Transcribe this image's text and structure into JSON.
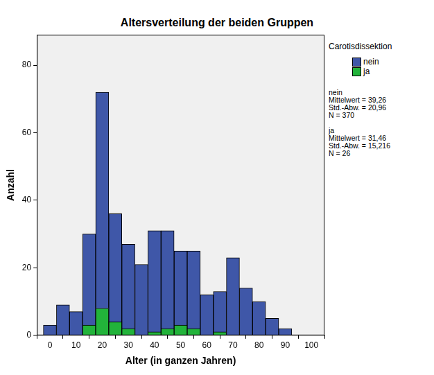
{
  "chart_data": {
    "type": "histogram",
    "title": "Altersverteilung der beiden Gruppen",
    "x_label": "Alter (in ganzen Jahren)",
    "y_label": "Anzahl",
    "bins": [
      -2.5,
      2.5,
      7.5,
      12.5,
      17.5,
      22.5,
      27.5,
      32.5,
      37.5,
      42.5,
      47.5,
      52.5,
      57.5,
      62.5,
      67.5,
      72.5,
      77.5,
      82.5,
      87.5,
      92.5
    ],
    "series": [
      {
        "name": "nein",
        "color": "#3f57a8",
        "values": [
          3,
          9,
          7,
          27,
          64,
          32,
          25,
          21,
          30,
          29,
          22,
          23,
          12,
          12,
          23,
          14,
          10,
          5,
          2
        ]
      },
      {
        "name": "ja",
        "color": "#22b33a",
        "values": [
          0,
          0,
          0,
          3,
          8,
          4,
          2,
          0,
          1,
          2,
          3,
          2,
          0,
          1,
          0,
          0,
          0,
          0,
          0
        ]
      }
    ],
    "stacked": true,
    "xlim": [
      -5,
      105
    ],
    "xticks": [
      0,
      10,
      20,
      30,
      40,
      50,
      60,
      70,
      80,
      90,
      100
    ],
    "ylim": [
      0,
      89
    ],
    "yticks": [
      0,
      20,
      40,
      60,
      80
    ],
    "grid": false,
    "legend": "right",
    "legend_title": "Carotisdissektion",
    "annotations": [
      [
        "nein",
        "Mittelwert = 39,26",
        "Std.-Abw. = 20,96",
        "N = 370"
      ],
      [
        "ja",
        "Mittelwert = 31,46",
        "Std.-Abw. = 15,216",
        "N = 26"
      ]
    ]
  }
}
